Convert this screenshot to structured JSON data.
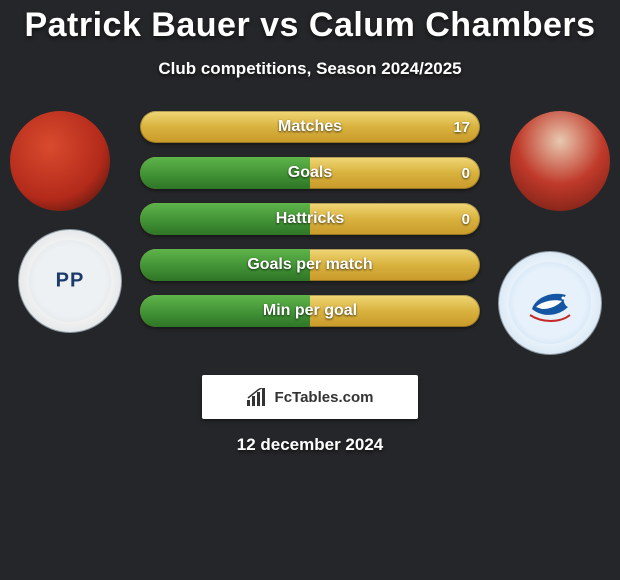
{
  "background_color": "#252629",
  "text_color": "#ffffff",
  "title": "Patrick Bauer vs Calum Chambers",
  "title_fontsize": 34,
  "subtitle": "Club competitions, Season 2024/2025",
  "subtitle_fontsize": 17,
  "date": "12 december 2024",
  "attribution": "FcTables.com",
  "players": {
    "left": {
      "name": "Patrick Bauer",
      "club": "Preston North End"
    },
    "right": {
      "name": "Calum Chambers",
      "club": "Cardiff City"
    }
  },
  "bar_style": {
    "height": 32,
    "border_radius": 16,
    "gap": 14,
    "track_gradient": [
      "#f0d777",
      "#d9b23e",
      "#c89a2a"
    ],
    "fill_gradient": [
      "#5fb44a",
      "#3f8f34",
      "#2f7527"
    ],
    "label_fontsize": 16,
    "value_fontsize": 15
  },
  "stats": [
    {
      "label": "Matches",
      "left_value": "",
      "right_value": "17",
      "left_pct": 0,
      "right_pct": 100
    },
    {
      "label": "Goals",
      "left_value": "",
      "right_value": "0",
      "left_pct": 50,
      "right_pct": 50
    },
    {
      "label": "Hattricks",
      "left_value": "",
      "right_value": "0",
      "left_pct": 50,
      "right_pct": 50
    },
    {
      "label": "Goals per match",
      "left_value": "",
      "right_value": "",
      "left_pct": 50,
      "right_pct": 50
    },
    {
      "label": "Min per goal",
      "left_value": "",
      "right_value": "",
      "left_pct": 50,
      "right_pct": 50
    }
  ]
}
